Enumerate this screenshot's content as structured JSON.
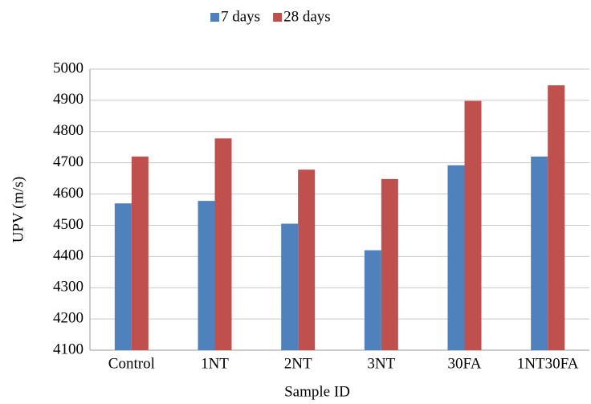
{
  "chart_data": {
    "type": "bar",
    "x_label": "Sample ID",
    "y_label": "UPV (m/s)",
    "categories": [
      "Control",
      "1NT",
      "2NT",
      "3NT",
      "30FA",
      "1NT30FA"
    ],
    "series": [
      {
        "name": "7 days",
        "color": "#4f81bd",
        "values": [
          4570,
          4578,
          4505,
          4420,
          4692,
          4720
        ]
      },
      {
        "name": "28 days",
        "color": "#c0504d",
        "values": [
          4720,
          4778,
          4678,
          4648,
          4898,
          4948
        ]
      }
    ],
    "ylim": [
      4100,
      5000
    ],
    "yticks": [
      4100,
      4200,
      4300,
      4400,
      4500,
      4600,
      4700,
      4800,
      4900,
      5000
    ],
    "grid": true,
    "legend": "top"
  }
}
